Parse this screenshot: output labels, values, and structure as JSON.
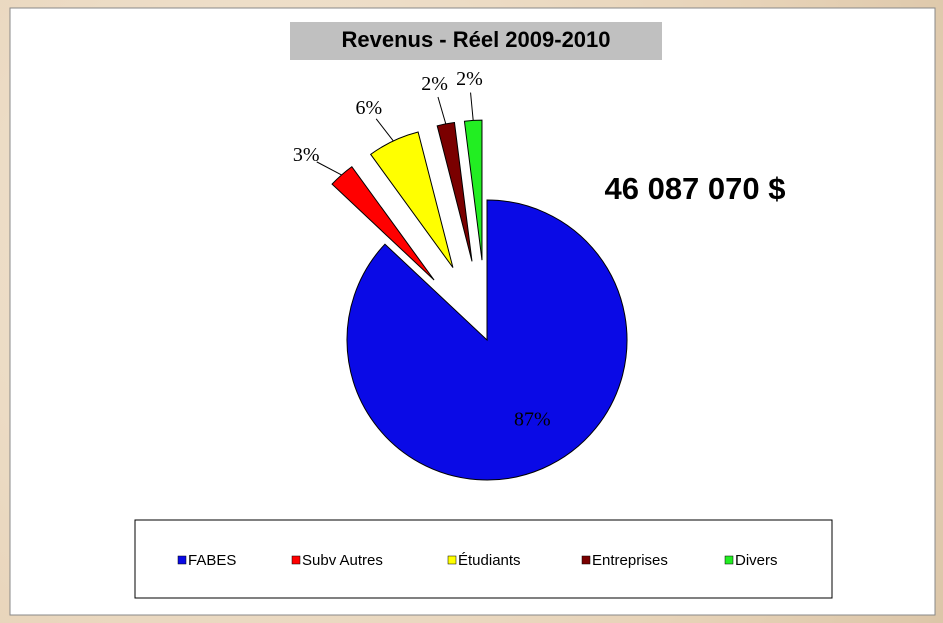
{
  "chart_data": {
    "type": "pie",
    "title": "Revenus  - Réel 2009-2010",
    "annotation": "46 087 070 $",
    "categories": [
      "FABES",
      "Subv Autres",
      "Étudiants",
      "Entreprises",
      "Divers"
    ],
    "values": [
      87,
      3,
      6,
      2,
      2
    ],
    "value_labels": [
      "87%",
      "3%",
      "6%",
      "2%",
      "2%"
    ],
    "colors": [
      "#0a0ae6",
      "#ff0000",
      "#ffff00",
      "#7a0000",
      "#22ee22"
    ],
    "legend": "bottom"
  }
}
